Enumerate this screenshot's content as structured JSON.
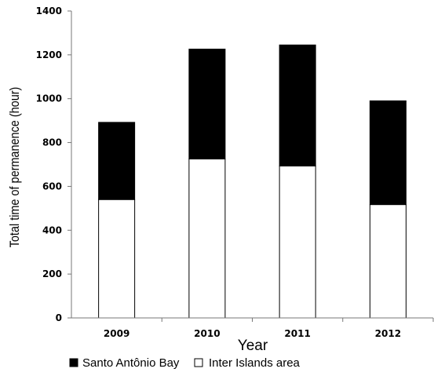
{
  "chart_data": {
    "type": "bar",
    "stacked": true,
    "title": "",
    "xlabel": "Year",
    "ylabel": "Total time of permanence (hour)",
    "categories": [
      "2009",
      "2010",
      "2011",
      "2012"
    ],
    "ylim": [
      0,
      1400
    ],
    "yticks": [
      0,
      200,
      400,
      600,
      800,
      1000,
      1200,
      1400
    ],
    "grid": false,
    "legend_position": "bottom",
    "series": [
      {
        "name": "Inter Islands area",
        "values": [
          540,
          725,
          693,
          517
        ],
        "color": "#ffffff"
      },
      {
        "name": "Santo Antônio Bay",
        "values": [
          352,
          501,
          552,
          473
        ],
        "color": "#000000"
      }
    ],
    "legend": [
      {
        "label": "Santo Antônio Bay",
        "color": "#000000"
      },
      {
        "label": "Inter Islands area",
        "color": "#ffffff"
      }
    ]
  }
}
